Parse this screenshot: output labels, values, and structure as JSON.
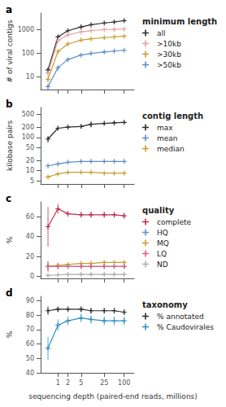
{
  "chart_data": [
    {
      "type": "line",
      "title": "a",
      "legend_title": "minimum length",
      "legend": "right",
      "log": true,
      "grid": false,
      "tick_labels": "y",
      "marker": "+",
      "ylabel": "# of viral contigs",
      "x": [
        0.5,
        1,
        2,
        5,
        10,
        25,
        50,
        100
      ],
      "xlim": [
        0.3,
        200
      ],
      "xticks": [
        1,
        2,
        5,
        25,
        100
      ],
      "ylim": [
        3,
        5000
      ],
      "yticks": [
        10,
        100,
        1000
      ],
      "series": [
        {
          "name": "all",
          "color": "#2d2d2d",
          "values": [
            20,
            500,
            900,
            1300,
            1600,
            1900,
            2100,
            2400
          ],
          "errors": [
            5,
            40,
            50,
            50,
            50,
            50,
            50,
            50
          ]
        },
        {
          "name": ">10kb",
          "color": "#e8a0a0",
          "values": [
            15,
            350,
            600,
            800,
            900,
            1000,
            1020,
            1050
          ],
          "errors": [
            4,
            25,
            25,
            25,
            25,
            25,
            25,
            25
          ]
        },
        {
          "name": ">30kb",
          "color": "#c8a030",
          "values": [
            8,
            120,
            250,
            360,
            410,
            460,
            490,
            530
          ],
          "errors": [
            2,
            12,
            12,
            12,
            12,
            12,
            12,
            12
          ]
        },
        {
          "name": ">50kb",
          "color": "#6090c8",
          "values": [
            4,
            25,
            55,
            85,
            100,
            115,
            125,
            135
          ],
          "errors": [
            1,
            6,
            6,
            6,
            6,
            6,
            6,
            6
          ]
        }
      ]
    },
    {
      "type": "line",
      "title": "b",
      "legend_title": "contig length",
      "legend": "right",
      "log": true,
      "grid": false,
      "tick_labels": "y",
      "marker": "+",
      "ylabel": "kilobase pairs",
      "x": [
        0.5,
        1,
        2,
        5,
        10,
        25,
        50,
        100
      ],
      "xlim": [
        0.3,
        200
      ],
      "xticks": [
        1,
        2,
        5,
        25,
        100
      ],
      "ylim": [
        4,
        800
      ],
      "yticks": [
        5,
        10,
        20,
        50,
        100,
        200,
        500
      ],
      "series": [
        {
          "name": "max",
          "color": "#2d2d2d",
          "values": [
            90,
            190,
            205,
            215,
            250,
            265,
            275,
            285
          ],
          "errors": [
            20,
            25,
            25,
            25,
            50,
            25,
            25,
            25
          ]
        },
        {
          "name": "mean",
          "color": "#6090c8",
          "values": [
            14,
            16,
            18,
            19,
            19,
            19,
            19,
            19
          ],
          "errors": [
            1,
            1,
            1,
            1,
            1,
            1,
            1,
            1
          ]
        },
        {
          "name": "median",
          "color": "#c8a030",
          "values": [
            6.5,
            8,
            9,
            9,
            9,
            8.5,
            8.5,
            8.5
          ],
          "errors": [
            0.5,
            0.5,
            0.5,
            0.5,
            0.5,
            0.5,
            0.5,
            0.5
          ]
        }
      ]
    },
    {
      "type": "line",
      "title": "c",
      "legend_title": "quality",
      "legend": "right",
      "log": "x",
      "grid": false,
      "tick_labels": "y",
      "marker": "+",
      "ylabel": "%",
      "x": [
        0.5,
        1,
        2,
        5,
        10,
        25,
        50,
        100
      ],
      "xlim": [
        0.3,
        200
      ],
      "xticks": [
        1,
        2,
        5,
        25,
        100
      ],
      "ylim": [
        -2,
        75
      ],
      "yticks": [
        0,
        20,
        40,
        60
      ],
      "series": [
        {
          "name": "complete",
          "color": "#c03050",
          "values": [
            50,
            68,
            63,
            62,
            62,
            62,
            62,
            61
          ],
          "errors": [
            20,
            5,
            3,
            3,
            3,
            3,
            3,
            3
          ]
        },
        {
          "name": "HQ",
          "color": "#6090c8",
          "values": [
            10,
            10,
            10,
            10,
            10,
            10,
            10,
            10
          ],
          "errors": [
            5,
            3,
            2,
            2,
            2,
            2,
            2,
            2
          ]
        },
        {
          "name": "MQ",
          "color": "#c8a030",
          "values": [
            10,
            11,
            12,
            13,
            13,
            14,
            14,
            14
          ],
          "errors": [
            5,
            3,
            2,
            2,
            2,
            2,
            2,
            2
          ]
        },
        {
          "name": "LQ",
          "color": "#e06080",
          "values": [
            10,
            10,
            10,
            10,
            10,
            10,
            10,
            10
          ],
          "errors": [
            5,
            3,
            2,
            2,
            2,
            2,
            2,
            2
          ]
        },
        {
          "name": "ND",
          "color": "#b0b0b0",
          "values": [
            1,
            1.5,
            2,
            2,
            2,
            2,
            2,
            2
          ],
          "errors": [
            1,
            1,
            1,
            1,
            1,
            1,
            1,
            1
          ]
        }
      ]
    },
    {
      "type": "line",
      "title": "d",
      "legend_title": "taxonomy",
      "legend": "right",
      "log": "x",
      "grid": false,
      "marker": "+",
      "ylabel": "%",
      "xlabel": "sequencing depth (paired-end reads, millions)",
      "x": [
        0.5,
        1,
        2,
        5,
        10,
        25,
        50,
        100
      ],
      "xlim": [
        0.3,
        200
      ],
      "xticks": [
        1,
        2,
        5,
        25,
        100
      ],
      "ylim": [
        40,
        93
      ],
      "yticks": [
        40,
        50,
        60,
        70,
        80,
        90
      ],
      "series": [
        {
          "name": "% annotated",
          "color": "#2d2d2d",
          "values": [
            83,
            84,
            84,
            84,
            83,
            83,
            83,
            82
          ],
          "errors": [
            3,
            2,
            2,
            2,
            2,
            2,
            2,
            2
          ]
        },
        {
          "name": "% Caudovirales",
          "color": "#3090c0",
          "values": [
            57,
            73,
            76,
            78,
            77,
            76,
            76,
            76
          ],
          "errors": [
            8,
            4,
            3,
            3,
            3,
            3,
            3,
            3
          ]
        }
      ]
    }
  ]
}
